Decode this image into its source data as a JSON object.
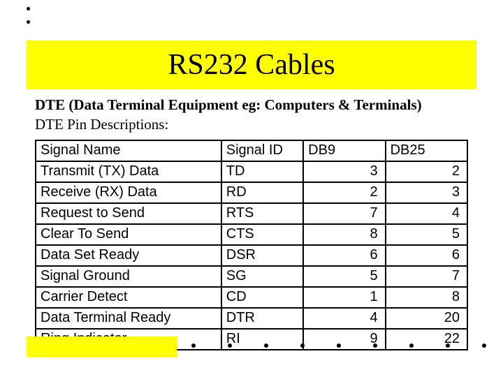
{
  "title": "RS232 Cables",
  "subtitle_bold": "DTE (Data Terminal Equipment eg: Computers & Terminals)",
  "subtitle_plain": "DTE Pin Descriptions:",
  "table": {
    "columns": [
      "Signal Name",
      "Signal ID",
      "DB9",
      "DB25"
    ],
    "column_align": [
      "left",
      "left",
      "right",
      "right"
    ],
    "rows": [
      [
        "Transmit (TX) Data",
        "TD",
        "3",
        "2"
      ],
      [
        "Receive (RX) Data",
        "RD",
        "2",
        "3"
      ],
      [
        "Request to Send",
        "RTS",
        "7",
        "4"
      ],
      [
        "Clear To Send",
        "CTS",
        "8",
        "5"
      ],
      [
        "Data Set Ready",
        "DSR",
        "6",
        "6"
      ],
      [
        "Signal Ground",
        "SG",
        "5",
        "7"
      ],
      [
        "Carrier Detect",
        "CD",
        "1",
        "8"
      ],
      [
        "Data Terminal Ready",
        "DTR",
        "4",
        "20"
      ],
      [
        "Ring Indicator",
        "RI",
        "9",
        "22"
      ]
    ],
    "border_color": "#000000",
    "font_size_pt": 15,
    "cell_bg": "#ffffff"
  },
  "colors": {
    "accent": "#ffff00",
    "text": "#000000",
    "background": "#ffffff"
  },
  "decorations": {
    "top_dots": 2,
    "bottom_dots": 10
  }
}
